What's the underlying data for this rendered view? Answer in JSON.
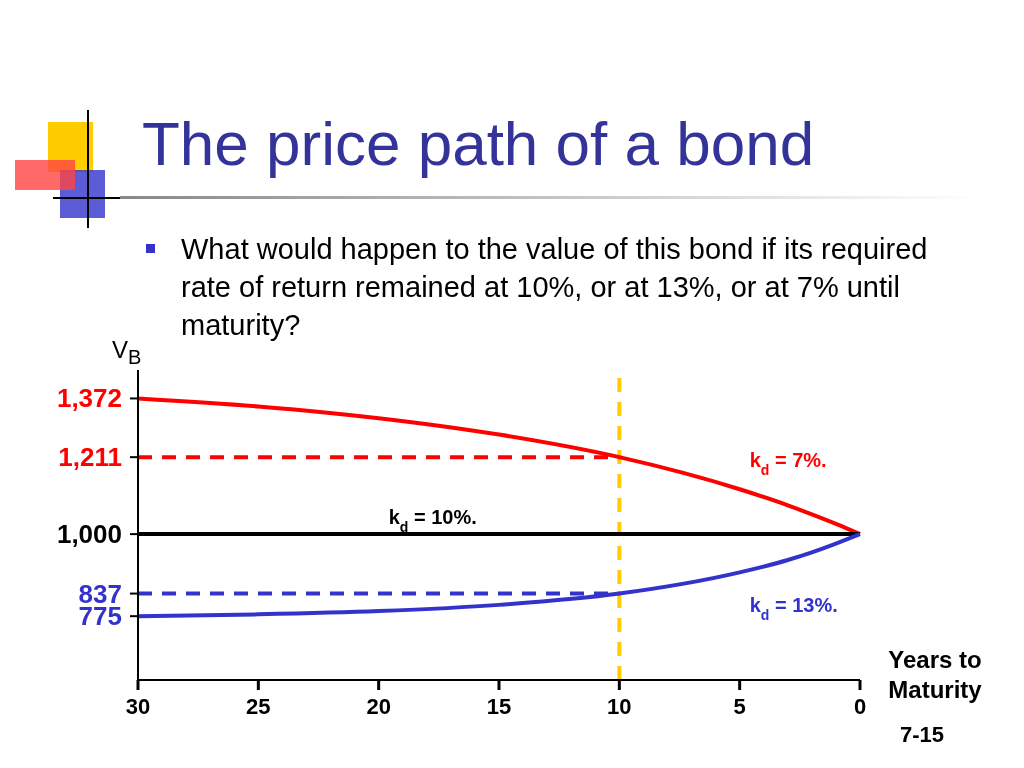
{
  "chart_data": {
    "type": "line",
    "title": "The price path of a bond",
    "subtitle": "What would happen to the value of this bond if its required rate of return remained at 10%, or at 13%, or at 7% until maturity?",
    "xlabel": "Years to Maturity",
    "ylabel": "V$_{B}$",
    "annotations": [
      "7-15"
    ],
    "x": [
      30,
      25,
      20,
      15,
      10,
      5,
      3,
      2,
      1,
      0
    ],
    "series": [
      {
        "name": "k$_{d}$ = 7%.",
        "color": "#ff0000",
        "values": [
          1372,
          1350,
          1318,
          1273,
          1211,
          1123,
          1079,
          1054,
          1028,
          1000
        ]
      },
      {
        "name": "k$_{d}$ = 10%.",
        "color": "#000000",
        "values": [
          1000,
          1000,
          1000,
          1000,
          1000,
          1000,
          1000,
          1000,
          1000,
          1000
        ]
      },
      {
        "name": "k$_{d}$ = 13%.",
        "color": "#3333cc",
        "values": [
          775,
          780,
          789,
          806,
          837,
          895,
          929,
          950,
          974,
          1000
        ]
      },
      {
        "color": "#ff0000",
        "values": [
          1211,
          1211,
          1211,
          1211,
          1211,
          null,
          null,
          null,
          null,
          null
        ],
        "line_style": "dashed"
      },
      {
        "color": "#3333cc",
        "values": [
          837,
          837,
          837,
          837,
          837,
          null,
          null,
          null,
          null,
          null
        ],
        "line_style": "dashed"
      }
    ],
    "ref_lines": [
      {
        "axis": "x",
        "value": 10,
        "color": "#ffcc00",
        "line_style": "dashed"
      }
    ],
    "xlim": [
      30,
      0
    ],
    "xticks": [
      30,
      25,
      20,
      15,
      10,
      5,
      0
    ],
    "ylim": [
      600,
      1450
    ],
    "yticks": [
      {
        "value": 1372,
        "label": "1,372"
      },
      {
        "value": 1211,
        "label": "1,211"
      },
      {
        "value": 1000,
        "label": "1,000"
      },
      {
        "value": 837,
        "label": "837"
      },
      {
        "value": 775,
        "label": "775"
      }
    ],
    "grid": false,
    "legend": false,
    "marker": "none",
    "line_style": "solid"
  }
}
